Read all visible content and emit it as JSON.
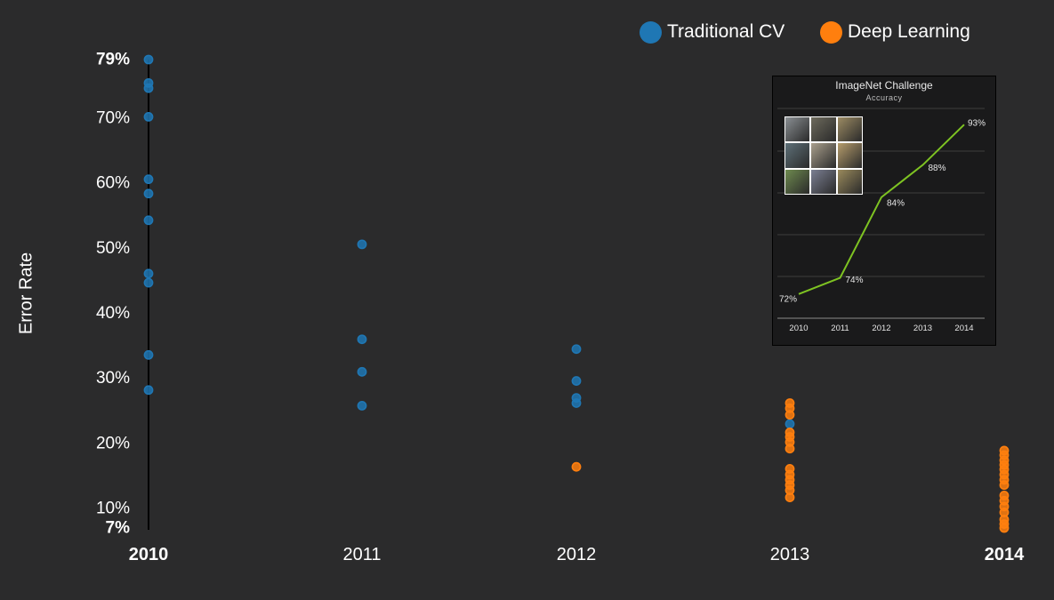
{
  "chart_data": [
    {
      "type": "scatter",
      "title": "",
      "ylabel": "Error Rate",
      "xlabel": "",
      "categories": [
        "2010",
        "2011",
        "2012",
        "2013",
        "2014"
      ],
      "ylim": [
        7,
        79
      ],
      "yticks": [
        {
          "value": 79,
          "label": "79%",
          "bold": true
        },
        {
          "value": 70,
          "label": "70%",
          "bold": false
        },
        {
          "value": 60,
          "label": "60%",
          "bold": false
        },
        {
          "value": 50,
          "label": "50%",
          "bold": false
        },
        {
          "value": 40,
          "label": "40%",
          "bold": false
        },
        {
          "value": 30,
          "label": "30%",
          "bold": false
        },
        {
          "value": 20,
          "label": "20%",
          "bold": false
        },
        {
          "value": 10,
          "label": "10%",
          "bold": false
        },
        {
          "value": 7,
          "label": "7%",
          "bold": true
        }
      ],
      "xticks_bold": [
        "2010",
        "2014"
      ],
      "legend_position": "top-right",
      "series": [
        {
          "name": "Traditional CV",
          "color": "#1f77b4",
          "points": [
            {
              "x": "2010",
              "y": 79.0
            },
            {
              "x": "2010",
              "y": 75.4
            },
            {
              "x": "2010",
              "y": 74.6
            },
            {
              "x": "2010",
              "y": 70.2
            },
            {
              "x": "2010",
              "y": 60.6
            },
            {
              "x": "2010",
              "y": 58.4
            },
            {
              "x": "2010",
              "y": 54.3
            },
            {
              "x": "2010",
              "y": 46.1
            },
            {
              "x": "2010",
              "y": 44.7
            },
            {
              "x": "2010",
              "y": 33.6
            },
            {
              "x": "2010",
              "y": 28.2
            },
            {
              "x": "2011",
              "y": 50.6
            },
            {
              "x": "2011",
              "y": 36.0
            },
            {
              "x": "2011",
              "y": 31.0
            },
            {
              "x": "2011",
              "y": 25.8
            },
            {
              "x": "2012",
              "y": 34.5
            },
            {
              "x": "2012",
              "y": 29.6
            },
            {
              "x": "2012",
              "y": 27.0
            },
            {
              "x": "2012",
              "y": 26.2
            },
            {
              "x": "2013",
              "y": 23.0
            }
          ]
        },
        {
          "name": "Deep Learning",
          "color": "#ff7f0e",
          "points": [
            {
              "x": "2012",
              "y": 16.4
            },
            {
              "x": "2013",
              "y": 26.2
            },
            {
              "x": "2013",
              "y": 25.4
            },
            {
              "x": "2013",
              "y": 24.4
            },
            {
              "x": "2013",
              "y": 21.7
            },
            {
              "x": "2013",
              "y": 21.0
            },
            {
              "x": "2013",
              "y": 20.2
            },
            {
              "x": "2013",
              "y": 19.2
            },
            {
              "x": "2013",
              "y": 16.1
            },
            {
              "x": "2013",
              "y": 15.2
            },
            {
              "x": "2013",
              "y": 14.4
            },
            {
              "x": "2013",
              "y": 13.6
            },
            {
              "x": "2013",
              "y": 12.8
            },
            {
              "x": "2013",
              "y": 11.7
            },
            {
              "x": "2014",
              "y": 18.9
            },
            {
              "x": "2014",
              "y": 18.2
            },
            {
              "x": "2014",
              "y": 17.4
            },
            {
              "x": "2014",
              "y": 16.7
            },
            {
              "x": "2014",
              "y": 16.0
            },
            {
              "x": "2014",
              "y": 15.2
            },
            {
              "x": "2014",
              "y": 14.4
            },
            {
              "x": "2014",
              "y": 13.6
            },
            {
              "x": "2014",
              "y": 12.0
            },
            {
              "x": "2014",
              "y": 11.2
            },
            {
              "x": "2014",
              "y": 10.3
            },
            {
              "x": "2014",
              "y": 9.4
            },
            {
              "x": "2014",
              "y": 8.3
            },
            {
              "x": "2014",
              "y": 7.6
            },
            {
              "x": "2014",
              "y": 7.0
            }
          ]
        }
      ]
    },
    {
      "type": "line",
      "title": "ImageNet Challenge",
      "subtitle": "Accuracy",
      "categories": [
        "2010",
        "2011",
        "2012",
        "2013",
        "2014"
      ],
      "values": [
        72,
        74,
        84,
        88,
        93
      ],
      "point_labels": [
        "72%",
        "74%",
        "84%",
        "88%",
        "93%"
      ],
      "ylim": [
        69,
        95
      ],
      "grid": true,
      "line_color": "#7ec322"
    }
  ],
  "legend": {
    "items": [
      {
        "label": "Traditional CV",
        "color": "#1f77b4"
      },
      {
        "label": "Deep Learning",
        "color": "#ff7f0e"
      }
    ]
  },
  "inset": {
    "thumbnail_colors": [
      "#8a8f93",
      "#6d6a5c",
      "#9c8b63",
      "#5e7078",
      "#a99f8c",
      "#b59c6b",
      "#6e8a4f",
      "#7b7f92",
      "#9a8a5c"
    ]
  }
}
